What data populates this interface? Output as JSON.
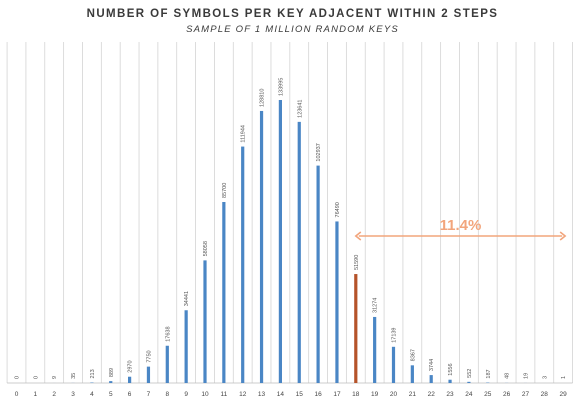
{
  "chart_data": {
    "type": "bar",
    "title": "NUMBER OF SYMBOLS PER KEY ADJACENT WITHIN 2 STEPS",
    "subtitle": "SAMPLE OF 1 MILLION RANDOM KEYS",
    "xlabel": "",
    "ylabel": "",
    "categories": [
      "0",
      "1",
      "2",
      "3",
      "4",
      "5",
      "6",
      "7",
      "8",
      "9",
      "10",
      "11",
      "12",
      "13",
      "14",
      "15",
      "16",
      "17",
      "18",
      "19",
      "20",
      "21",
      "22",
      "23",
      "24",
      "25",
      "26",
      "27",
      "28",
      "29"
    ],
    "values": [
      0,
      0,
      9,
      35,
      213,
      889,
      2970,
      7750,
      17638,
      34441,
      58058,
      85700,
      111944,
      128810,
      133995,
      123641,
      102937,
      76490,
      51590,
      31274,
      17139,
      8367,
      3744,
      1556,
      552,
      187,
      48,
      19,
      3,
      1
    ],
    "ylim": [
      0,
      145000
    ],
    "grid": "vertical",
    "legend": "none",
    "highlight_category": "18",
    "annotation": {
      "text": "11.4%",
      "from_category": "18",
      "to_category": "29"
    },
    "colors": {
      "bar": "#4a86c5",
      "highlight_bar": "#b5532a",
      "annotation": "#f2a57c",
      "grid": "#d4d4d4"
    }
  }
}
